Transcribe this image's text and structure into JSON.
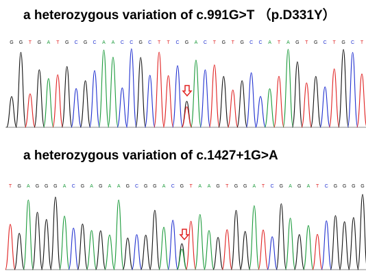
{
  "panels": [
    {
      "title": "a heterozygous variation of c.991G>T （p.D331Y）",
      "bases": [
        "G",
        "G",
        "T",
        "G",
        "A",
        "T",
        "G",
        "C",
        "G",
        "C",
        "A",
        "A",
        "C",
        "C",
        "G",
        "C",
        "T",
        "T",
        "C",
        "G",
        "A",
        "C",
        "T",
        "G",
        "T",
        "G",
        "C",
        "C",
        "A",
        "T",
        "A",
        "G",
        "T",
        "G",
        "C",
        "T",
        "G",
        "C",
        "T"
      ]
    },
    {
      "title": "a heterozygous variation of c.1427+1G>A",
      "bases": [
        "T",
        "G",
        "A",
        "G",
        "G",
        "G",
        "A",
        "C",
        "G",
        "A",
        "G",
        "A",
        "A",
        "G",
        "C",
        "G",
        "G",
        "A",
        "C",
        "G",
        "T",
        "A",
        "A",
        "G",
        "T",
        "G",
        "G",
        "A",
        "T",
        "C",
        "G",
        "A",
        "G",
        "A",
        "T",
        "C",
        "G",
        "G",
        "G",
        "G"
      ]
    }
  ]
}
